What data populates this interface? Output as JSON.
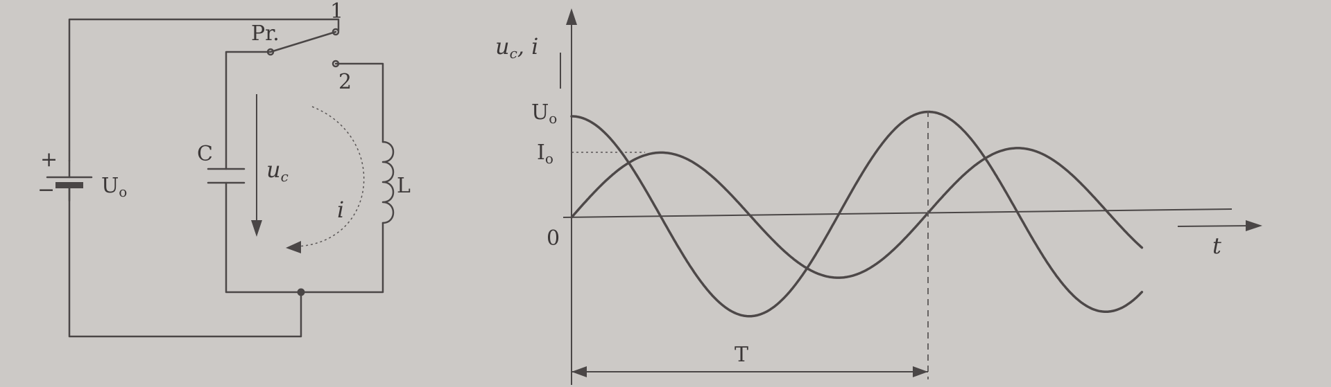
{
  "circuit": {
    "source_label": "U",
    "source_sub": "o",
    "plus_sign": "+",
    "minus_sign": "−",
    "switch_label": "Pr.",
    "position_1": "1",
    "position_2": "2",
    "capacitor_label": "C",
    "voltage_label": "u",
    "voltage_sub": "c",
    "inductor_label": "L",
    "current_label": "i"
  },
  "graph": {
    "y_axis_label": "u",
    "y_axis_sub": "c",
    "y_axis_tail": ", i",
    "x_axis_label": "t",
    "origin_label": "0",
    "u0_label": "U",
    "u0_sub": "o",
    "i0_label": "I",
    "i0_sub": "o",
    "period_label": "T"
  },
  "chart_data": {
    "type": "line",
    "title": "",
    "xlabel": "t",
    "ylabel": "uc, i",
    "xlim": [
      0,
      1.6
    ],
    "ylim": [
      -1,
      1
    ],
    "series": [
      {
        "name": "uc",
        "amplitude": 1.0,
        "function": "cos",
        "period": 1.0
      },
      {
        "name": "i",
        "amplitude": 0.63,
        "function": "sin",
        "period": 1.0
      }
    ],
    "x_end": 1.6,
    "annotations": [
      "U0",
      "I0",
      "T",
      "0"
    ]
  }
}
